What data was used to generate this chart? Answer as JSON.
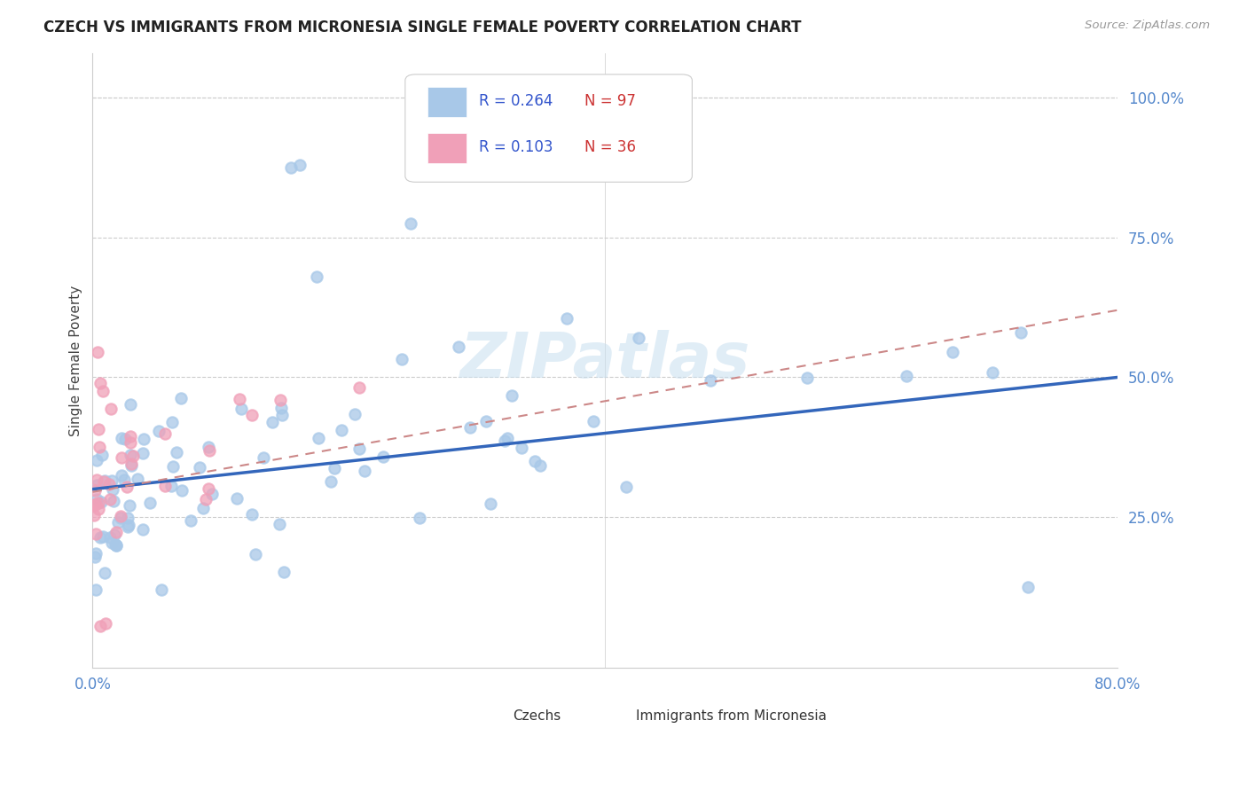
{
  "title": "CZECH VS IMMIGRANTS FROM MICRONESIA SINGLE FEMALE POVERTY CORRELATION CHART",
  "source": "Source: ZipAtlas.com",
  "ylabel": "Single Female Poverty",
  "xlim": [
    0.0,
    0.8
  ],
  "ylim": [
    -0.02,
    1.08
  ],
  "ytick_labels": [
    "25.0%",
    "50.0%",
    "75.0%",
    "100.0%"
  ],
  "ytick_positions": [
    0.25,
    0.5,
    0.75,
    1.0
  ],
  "xtick_labels": [
    "0.0%",
    "80.0%"
  ],
  "xtick_positions": [
    0.0,
    0.8
  ],
  "czech_color": "#a8c8e8",
  "micronesia_color": "#f0a0b8",
  "czech_line_color": "#3366bb",
  "micronesia_line_color": "#cc8888",
  "czech_R": 0.264,
  "czech_N": 97,
  "micronesia_R": 0.103,
  "micronesia_N": 36,
  "legend_R_color": "#3355cc",
  "legend_N_color": "#cc3333",
  "watermark_text": "ZIPatlas",
  "background_color": "#ffffff",
  "grid_color": "#cccccc",
  "tick_color": "#5588cc",
  "czech_trend_start_y": 0.3,
  "czech_trend_end_y": 0.5,
  "micro_trend_start_y": 0.295,
  "micro_trend_end_y": 0.62
}
